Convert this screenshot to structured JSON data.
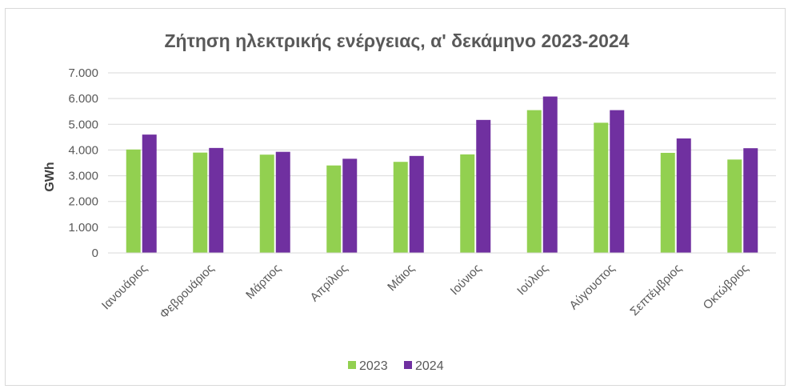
{
  "chart_data": {
    "type": "bar",
    "title": "Ζήτηση ηλεκτρικής ενέργειας, α' δεκάμηνο 2023-2024",
    "xlabel": "",
    "ylabel": "GWh",
    "ylim": [
      0,
      7000
    ],
    "yticks": [
      "0",
      "1.000",
      "2.000",
      "3.000",
      "4.000",
      "5.000",
      "6.000",
      "7.000"
    ],
    "grid": true,
    "legend_position": "bottom",
    "categories": [
      "Ιανουάριος",
      "Φεβρουάριος",
      "Μάρτιος",
      "Απρίλιος",
      "Μάιος",
      "Ιούνιος",
      "Ιούλιος",
      "Αύγουστος",
      "Σεπτέμβριος",
      "Οκτώβριος"
    ],
    "series": [
      {
        "name": "2023",
        "color": "#92d050",
        "values": [
          4020,
          3900,
          3820,
          3400,
          3540,
          3830,
          5550,
          5060,
          3890,
          3630
        ]
      },
      {
        "name": "2024",
        "color": "#7030a0",
        "values": [
          4600,
          4080,
          3930,
          3660,
          3770,
          5170,
          6080,
          5550,
          4450,
          4070
        ]
      }
    ]
  }
}
